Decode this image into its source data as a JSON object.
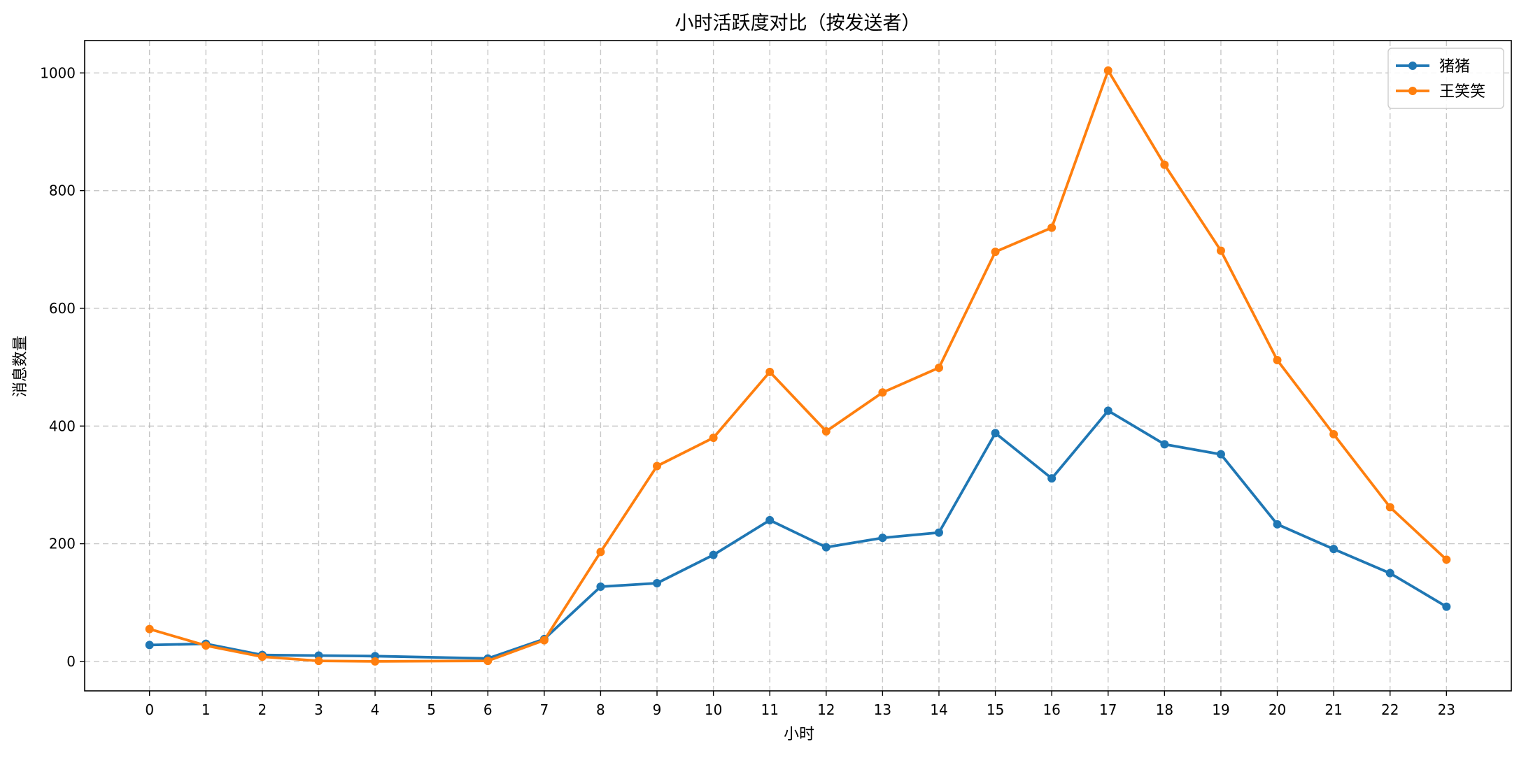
{
  "chart_data": {
    "type": "line",
    "title": "小时活跃度对比（按发送者）",
    "xlabel": "小时",
    "ylabel": "消息数量",
    "x": [
      0,
      1,
      2,
      3,
      4,
      5,
      6,
      7,
      8,
      9,
      10,
      11,
      12,
      13,
      14,
      15,
      16,
      17,
      18,
      19,
      20,
      21,
      22,
      23
    ],
    "x_tick_labels": [
      "0",
      "1",
      "2",
      "3",
      "4",
      "5",
      "6",
      "7",
      "8",
      "9",
      "10",
      "11",
      "12",
      "13",
      "14",
      "15",
      "16",
      "17",
      "18",
      "19",
      "20",
      "21",
      "22",
      "23"
    ],
    "ylim": [
      -50,
      1055
    ],
    "xlim": [
      -1.15,
      24.15
    ],
    "y_ticks": [
      0,
      200,
      400,
      600,
      800,
      1000
    ],
    "y_tick_labels": [
      "0",
      "200",
      "400",
      "600",
      "800",
      "1000"
    ],
    "grid": true,
    "legend_position": "top-right",
    "series": [
      {
        "name": "猪猪",
        "color": "#1f77b4",
        "x": [
          0,
          1,
          2,
          3,
          4,
          6,
          7,
          8,
          9,
          10,
          11,
          12,
          13,
          14,
          15,
          16,
          17,
          18,
          19,
          20,
          21,
          22,
          23
        ],
        "values": [
          28,
          30,
          11,
          10,
          9,
          5,
          38,
          127,
          133,
          181,
          240,
          194,
          210,
          219,
          388,
          311,
          426,
          369,
          352,
          233,
          191,
          150,
          93
        ]
      },
      {
        "name": "王笑笑",
        "color": "#ff7f0e",
        "x": [
          0,
          1,
          2,
          3,
          4,
          6,
          7,
          8,
          9,
          10,
          11,
          12,
          13,
          14,
          15,
          16,
          17,
          18,
          19,
          20,
          21,
          22,
          23
        ],
        "values": [
          55,
          27,
          8,
          1,
          0,
          1,
          36,
          186,
          332,
          380,
          492,
          391,
          457,
          499,
          696,
          737,
          1004,
          844,
          698,
          512,
          386,
          262,
          173
        ]
      }
    ]
  }
}
